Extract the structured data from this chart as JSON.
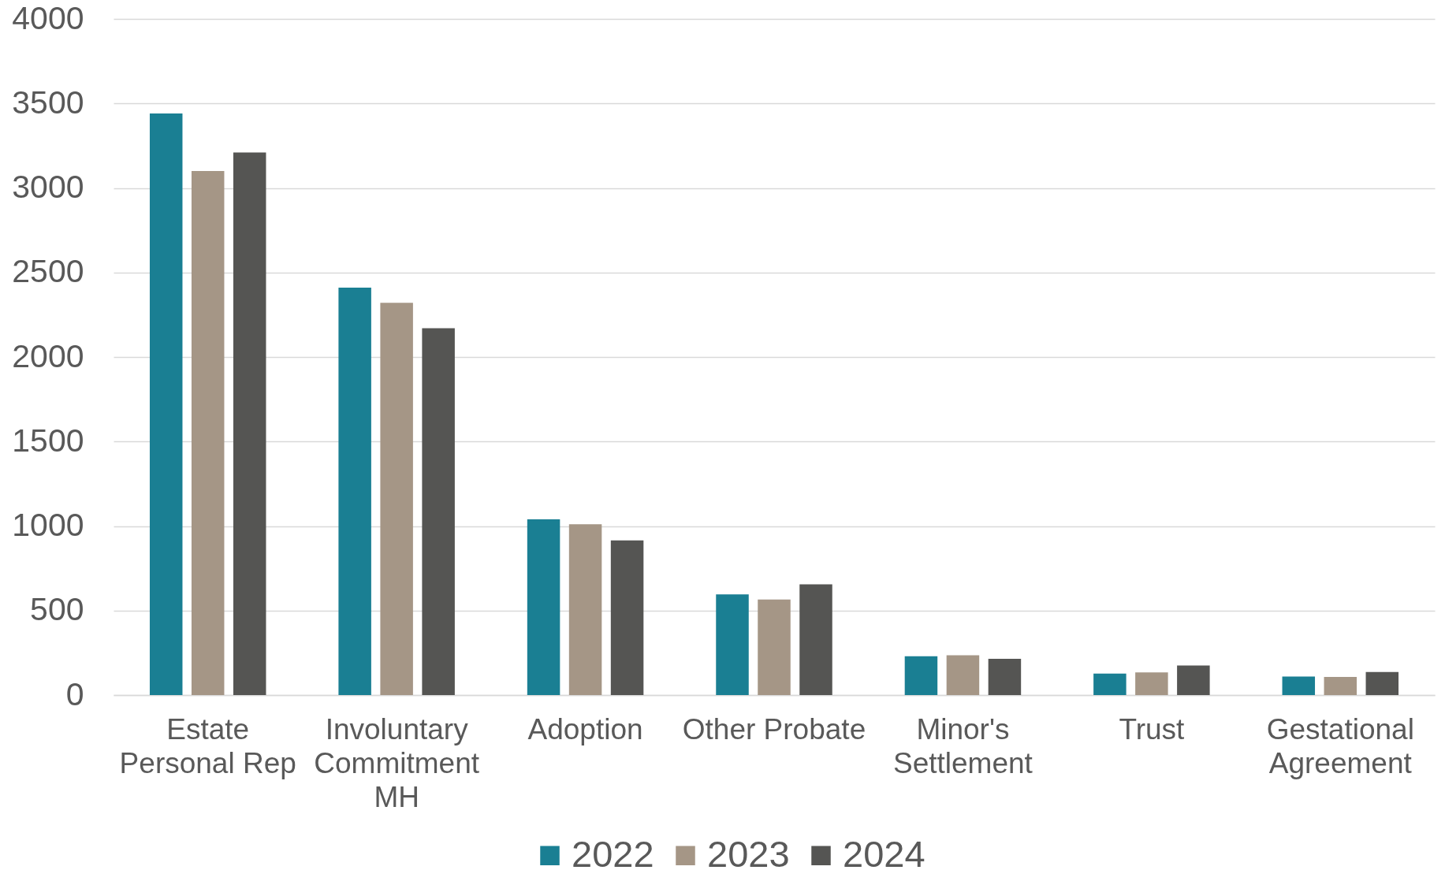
{
  "chart_data": {
    "type": "bar",
    "categories": [
      "Estate Personal Rep",
      "Involuntary Commitment MH",
      "Adoption",
      "Other Probate",
      "Minor's Settlement",
      "Trust",
      "Gestational Agreement"
    ],
    "series": [
      {
        "name": "2022",
        "color": "#1a7f93",
        "values": [
          3440,
          2410,
          1040,
          595,
          230,
          127,
          110
        ]
      },
      {
        "name": "2023",
        "color": "#a59686",
        "values": [
          3100,
          2320,
          1010,
          565,
          235,
          134,
          107
        ]
      },
      {
        "name": "2024",
        "color": "#555553",
        "values": [
          3210,
          2170,
          915,
          655,
          215,
          175,
          136
        ]
      }
    ],
    "ylim": [
      0,
      4000
    ],
    "yticks": [
      0,
      500,
      1000,
      1500,
      2000,
      2500,
      3000,
      3500,
      4000
    ],
    "grid": "y",
    "legend": "bottom"
  }
}
